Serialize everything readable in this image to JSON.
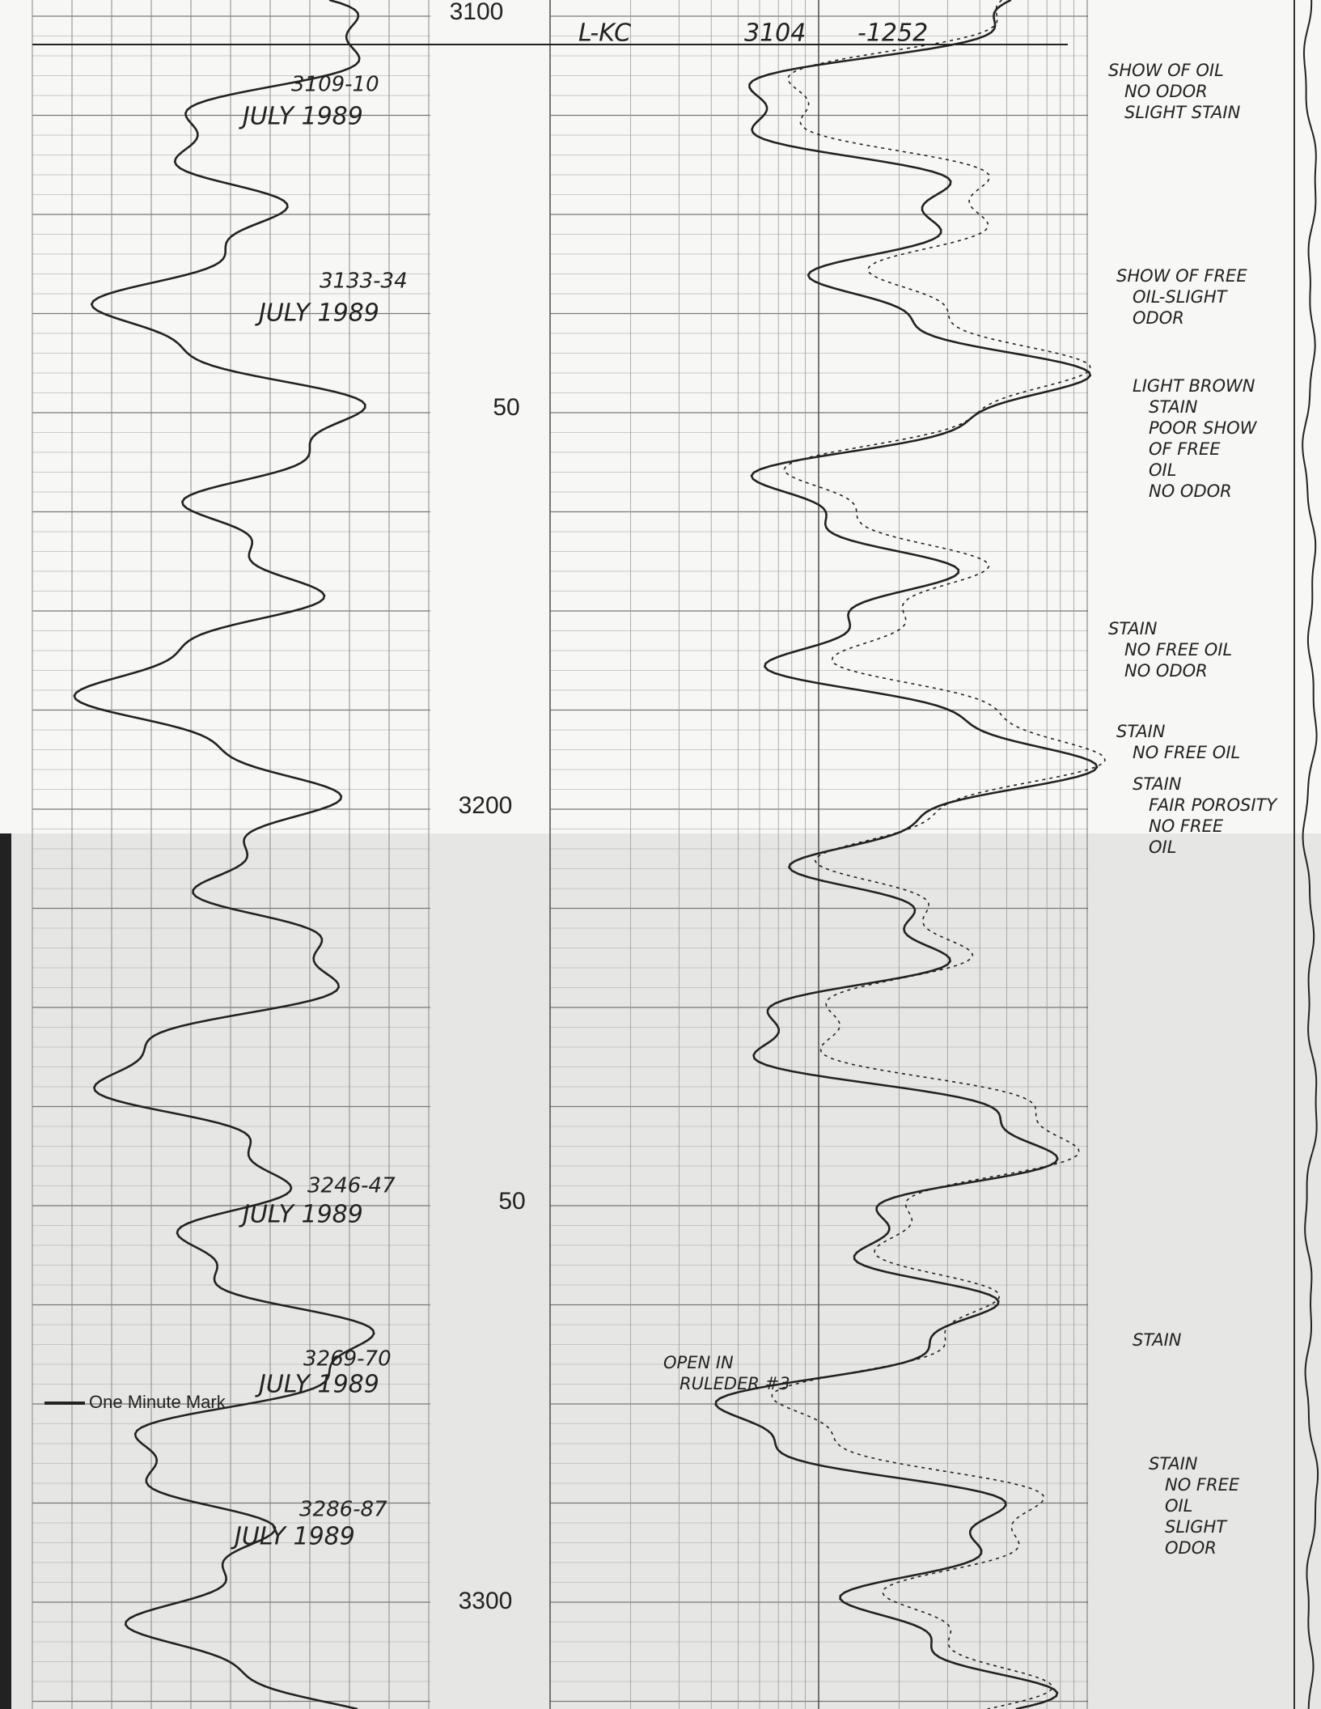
{
  "depth_labels": [
    "3100",
    "50",
    "3200",
    "50",
    "3300"
  ],
  "header": {
    "formation": "L-KC",
    "top": "3104",
    "datum": "-1252"
  },
  "samples": [
    {
      "depth": "3109-10",
      "date": "JULY 1989"
    },
    {
      "depth": "3133-34",
      "date": "JULY 1989"
    },
    {
      "depth": "3246-47",
      "date": "JULY 1989"
    },
    {
      "depth": "3269-70",
      "date": "JULY 1989"
    },
    {
      "depth": "3286-87",
      "date": "JULY 1989"
    }
  ],
  "marker": "One Minute Mark",
  "notes": [
    {
      "lines": [
        "SHOW OF OIL",
        "NO ODOR",
        "SLIGHT STAIN"
      ]
    },
    {
      "lines": [
        "SHOW OF FREE",
        "OIL-SLIGHT",
        "ODOR"
      ]
    },
    {
      "lines": [
        "LIGHT BROWN",
        "STAIN",
        "POOR SHOW",
        "OF FREE",
        "OIL",
        "NO ODOR"
      ]
    },
    {
      "lines": [
        "STAIN",
        "NO FREE OIL",
        "NO ODOR"
      ]
    },
    {
      "lines": [
        "STAIN",
        "NO FREE OIL"
      ]
    },
    {
      "lines": [
        "STAIN",
        "FAIR POROSITY",
        "NO FREE",
        "OIL"
      ]
    },
    {
      "lines": [
        "STAIN"
      ]
    },
    {
      "lines": [
        "OPEN IN",
        "RULEDER #3"
      ]
    },
    {
      "lines": [
        "STAIN",
        "NO FREE",
        "OIL",
        "SLIGHT",
        "ODOR"
      ]
    }
  ]
}
